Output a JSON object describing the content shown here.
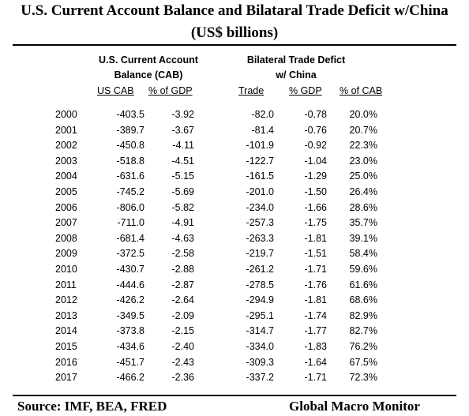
{
  "title": {
    "line1": "U.S. Current Account Balance and Bilataral Trade Deficit w/China",
    "line2": "(US$ billions)"
  },
  "groups": {
    "cab_line1": "U.S. Current Account",
    "cab_line2": "Balance  (CAB)",
    "trade_line1": "Bilateral Trade Defict",
    "trade_line2": "w/ China"
  },
  "columns": {
    "us_cab": "US CAB",
    "pct_gdp": "% of GDP",
    "trade": "Trade",
    "trade_pct_gdp": "% GDP",
    "pct_cab": "% of CAB"
  },
  "rows": [
    [
      "2000",
      "-403.5",
      "-3.92",
      "-82.0",
      "-0.78",
      "20.0%"
    ],
    [
      "2001",
      "-389.7",
      "-3.67",
      "-81.4",
      "-0.76",
      "20.7%"
    ],
    [
      "2002",
      "-450.8",
      "-4.11",
      "-101.9",
      "-0.92",
      "22.3%"
    ],
    [
      "2003",
      "-518.8",
      "-4.51",
      "-122.7",
      "-1.04",
      "23.0%"
    ],
    [
      "2004",
      "-631.6",
      "-5.15",
      "-161.5",
      "-1.29",
      "25.0%"
    ],
    [
      "2005",
      "-745.2",
      "-5.69",
      "-201.0",
      "-1.50",
      "26.4%"
    ],
    [
      "2006",
      "-806.0",
      "-5.82",
      "-234.0",
      "-1.66",
      "28.6%"
    ],
    [
      "2007",
      "-711.0",
      "-4.91",
      "-257.3",
      "-1.75",
      "35.7%"
    ],
    [
      "2008",
      "-681.4",
      "-4.63",
      "-263.3",
      "-1.81",
      "39.1%"
    ],
    [
      "2009",
      "-372.5",
      "-2.58",
      "-219.7",
      "-1.51",
      "58.4%"
    ],
    [
      "2010",
      "-430.7",
      "-2.88",
      "-261.2",
      "-1.71",
      "59.6%"
    ],
    [
      "2011",
      "-444.6",
      "-2.87",
      "-278.5",
      "-1.76",
      "61.6%"
    ],
    [
      "2012",
      "-426.2",
      "-2.64",
      "-294.9",
      "-1.81",
      "68.6%"
    ],
    [
      "2013",
      "-349.5",
      "-2.09",
      "-295.1",
      "-1.74",
      "82.9%"
    ],
    [
      "2014",
      "-373.8",
      "-2.15",
      "-314.7",
      "-1.77",
      "82.7%"
    ],
    [
      "2015",
      "-434.6",
      "-2.40",
      "-334.0",
      "-1.83",
      "76.2%"
    ],
    [
      "2016",
      "-451.7",
      "-2.43",
      "-309.3",
      "-1.64",
      "67.5%"
    ],
    [
      "2017",
      "-466.2",
      "-2.36",
      "-337.2",
      "-1.71",
      "72.3%"
    ]
  ],
  "footer": {
    "source": "Source:  IMF,  BEA, FRED",
    "brand": "Global Macro Monitor"
  }
}
